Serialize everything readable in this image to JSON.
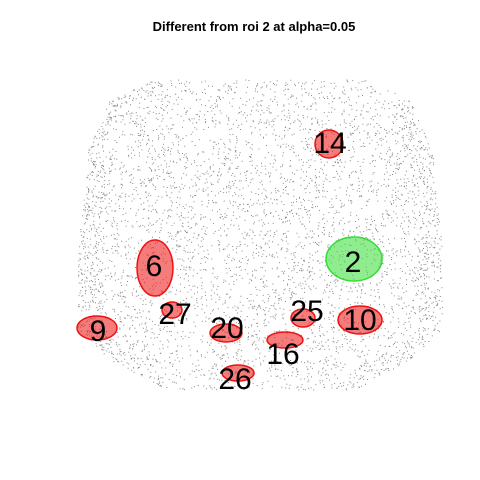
{
  "title": "Different from roi 2 at alpha=0.05",
  "regions": [
    {
      "label": "14",
      "color": "#ee1111"
    },
    {
      "label": "6",
      "color": "#ee1111"
    },
    {
      "label": "2",
      "color": "#33dd33"
    },
    {
      "label": "25",
      "color": "#ee1111"
    },
    {
      "label": "10",
      "color": "#ee1111"
    },
    {
      "label": "27",
      "color": "#ee1111"
    },
    {
      "label": "9",
      "color": "#ee1111"
    },
    {
      "label": "20",
      "color": "#ee1111"
    },
    {
      "label": "16",
      "color": "#ee1111"
    },
    {
      "label": "26",
      "color": "#ee1111"
    }
  ]
}
